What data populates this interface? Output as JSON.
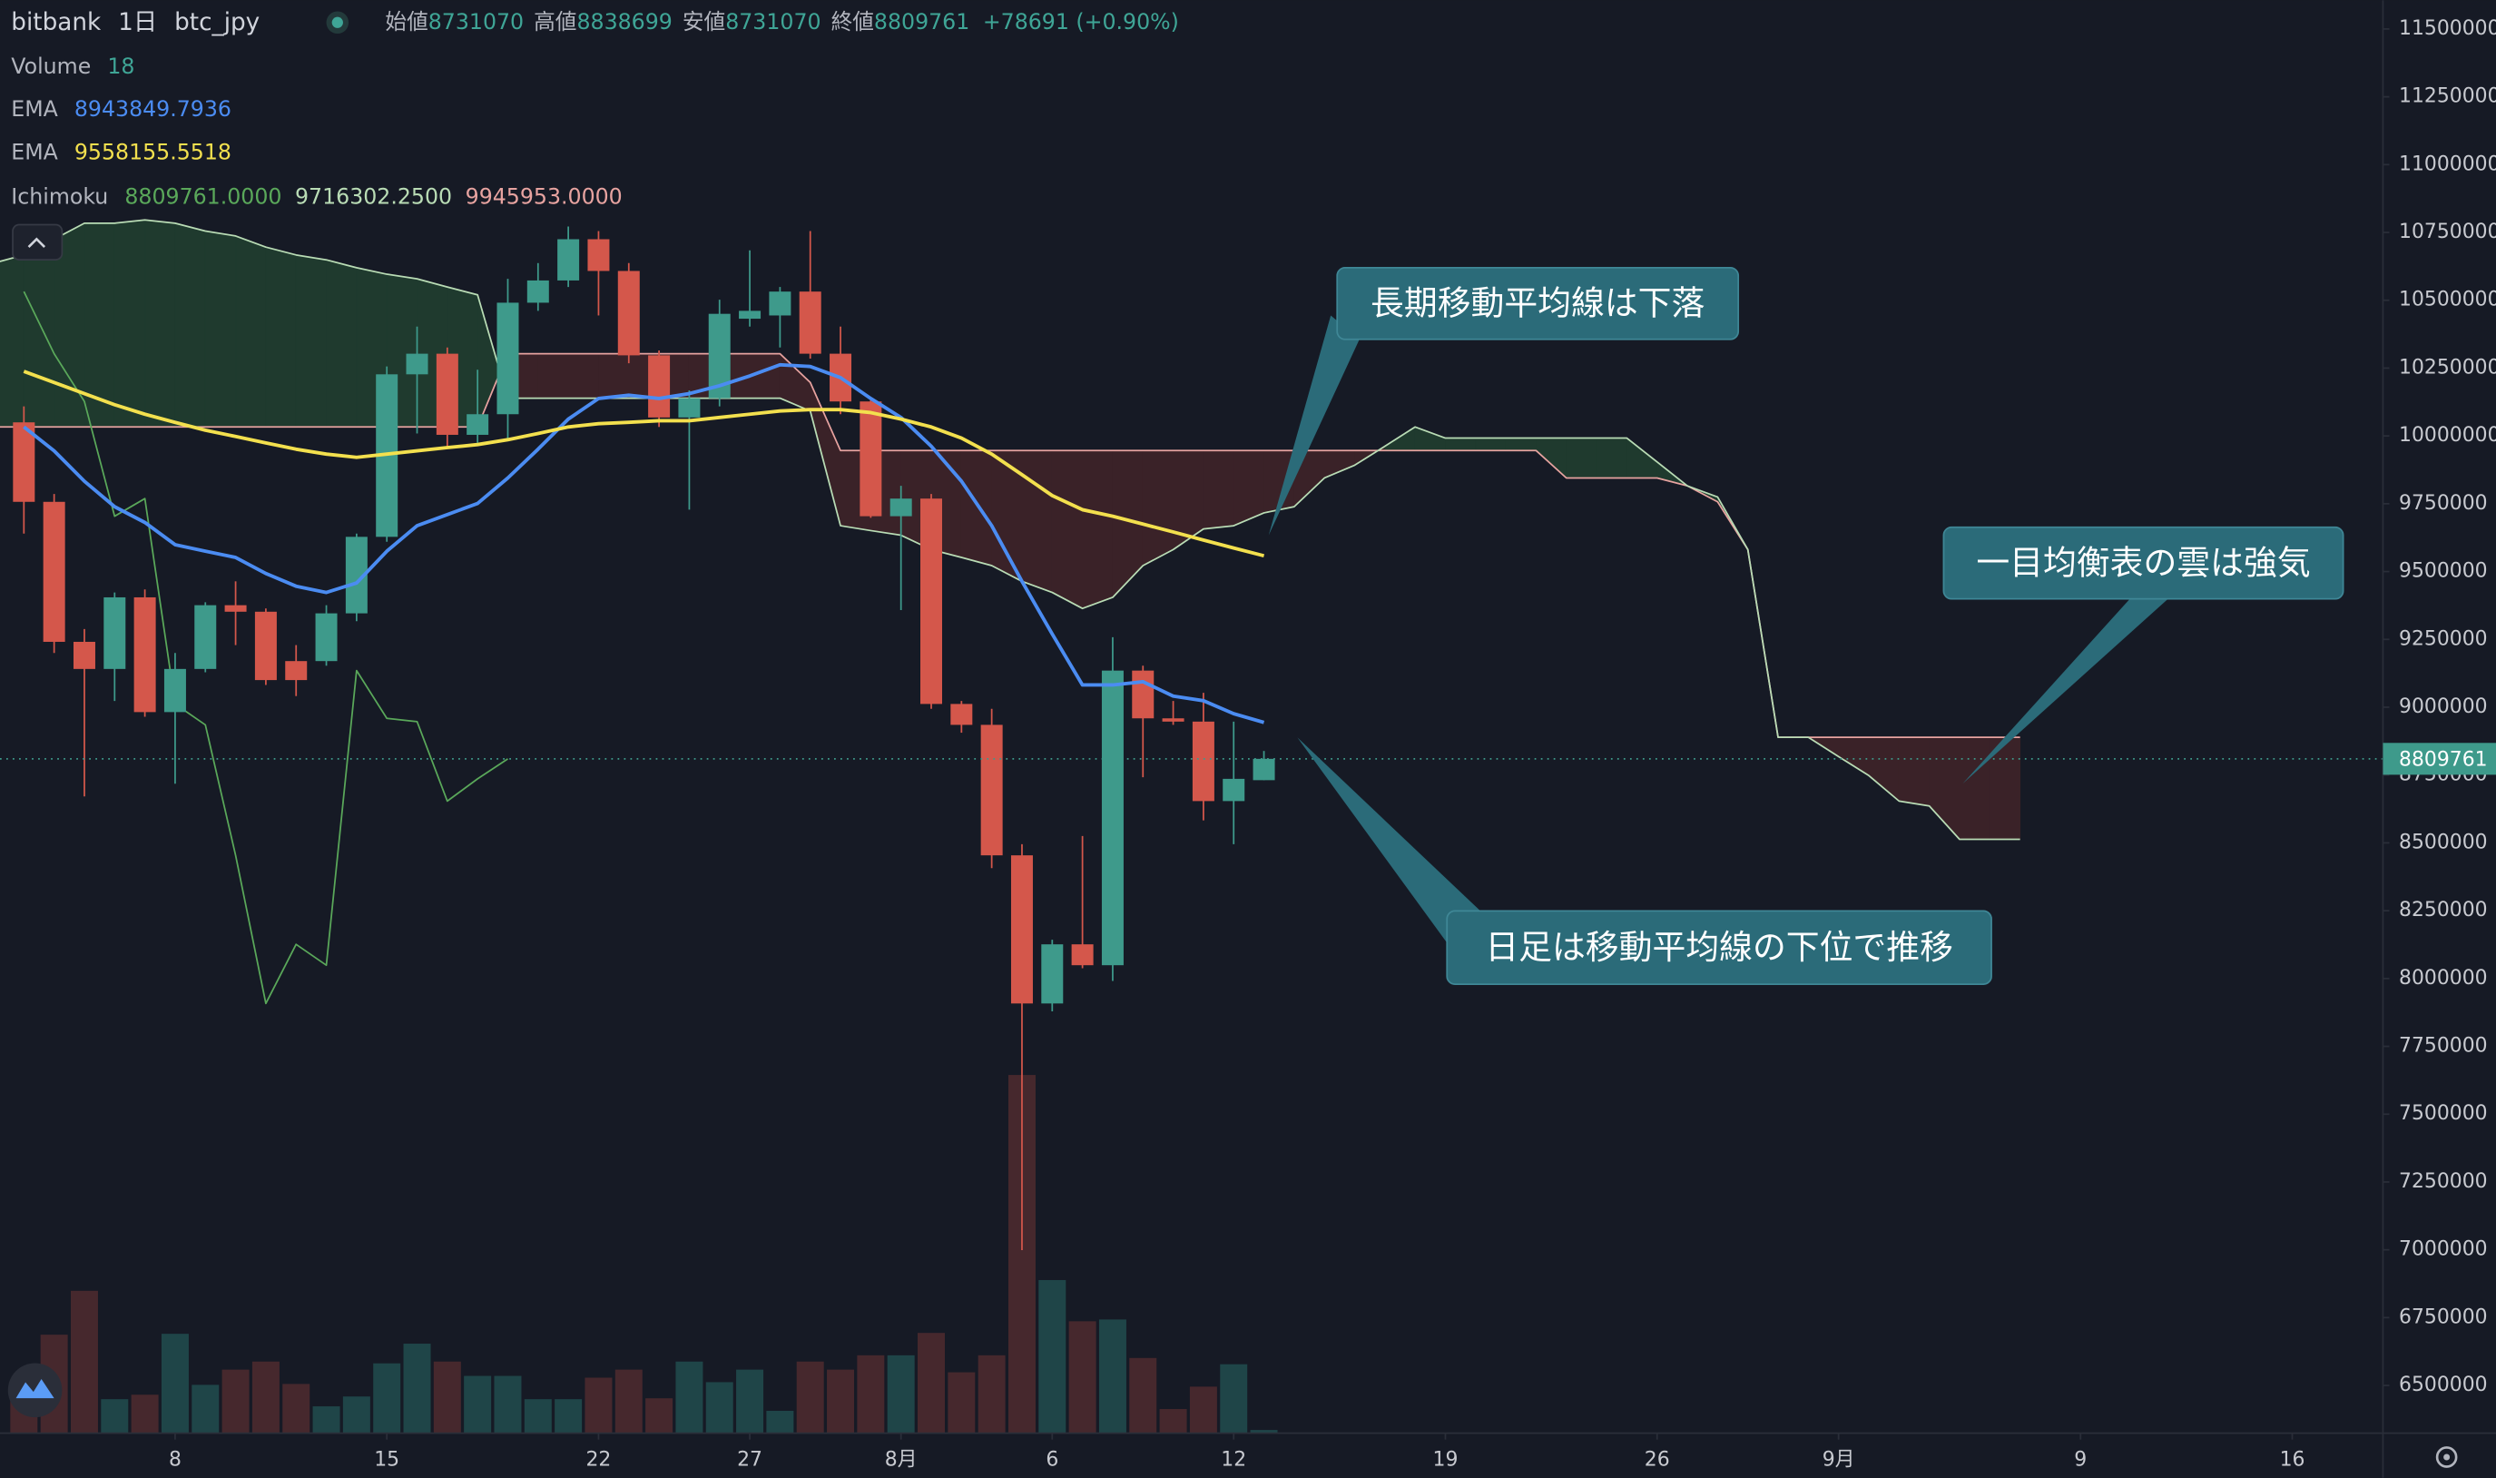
{
  "header": {
    "exchange": "bitbank",
    "interval": "1日",
    "symbol": "btc_jpy",
    "open_label": "始値",
    "high_label": "高値",
    "low_label": "安値",
    "close_label": "終値",
    "change": "+78691 (+0.90%)"
  },
  "chart_data": {
    "type": "candlestick",
    "x": [
      2,
      3,
      4,
      5,
      6,
      7,
      8,
      9,
      10,
      11,
      12,
      13,
      14,
      15,
      16,
      17,
      18,
      19,
      20,
      21,
      22,
      23,
      24,
      25,
      26,
      27,
      28,
      29,
      30,
      31,
      32,
      33,
      34,
      35,
      36,
      37,
      38,
      39,
      40,
      41,
      42,
      43
    ],
    "open": [
      10050000,
      9757000,
      9241000,
      9141000,
      9405000,
      8982000,
      9141000,
      9376000,
      9352000,
      9170000,
      9170000,
      9346000,
      9628000,
      10227000,
      10303000,
      10004000,
      10080000,
      10491000,
      10573000,
      10725000,
      10608000,
      10297000,
      10068000,
      10139000,
      10432000,
      10444000,
      10532000,
      10303000,
      10127000,
      9704000,
      9769000,
      9012000,
      8935000,
      8454000,
      7908000,
      8126000,
      8049000,
      9135000,
      8959000,
      8947000,
      8654000,
      8731070
    ],
    "high": [
      10109000,
      9786000,
      9288000,
      9423000,
      9434000,
      9200000,
      9387000,
      9464000,
      9364000,
      9229000,
      9376000,
      9640000,
      10256000,
      10403000,
      10326000,
      10244000,
      10579000,
      10637000,
      10772000,
      10755000,
      10637000,
      10315000,
      10168000,
      10502000,
      10684000,
      10549000,
      10755000,
      10403000,
      10139000,
      9816000,
      9786000,
      9023000,
      8994000,
      8495000,
      8143000,
      8525000,
      9258000,
      9153000,
      9023000,
      9053000,
      8947000,
      8838699
    ],
    "low": [
      9640000,
      9200000,
      8671000,
      9023000,
      8965000,
      8718000,
      9129000,
      9229000,
      9082000,
      9041000,
      9153000,
      9317000,
      9610000,
      10009000,
      9962000,
      9974000,
      9992000,
      10461000,
      10549000,
      10444000,
      10268000,
      10033000,
      9728000,
      10109000,
      10403000,
      10326000,
      10285000,
      10080000,
      9698000,
      9358000,
      8994000,
      8906000,
      8407000,
      6999000,
      7879000,
      8038000,
      7991000,
      8742000,
      8935000,
      8583000,
      8495000,
      8731070
    ],
    "close": [
      9757000,
      9241000,
      9141000,
      9405000,
      8982000,
      9141000,
      9376000,
      9352000,
      9100000,
      9100000,
      9346000,
      9628000,
      10227000,
      10303000,
      10004000,
      10080000,
      10491000,
      10573000,
      10725000,
      10608000,
      10297000,
      10068000,
      10139000,
      10450000,
      10461000,
      10532000,
      10303000,
      10127000,
      9704000,
      9769000,
      9012000,
      8935000,
      8454000,
      7908000,
      8126000,
      8049000,
      9135000,
      8959000,
      8947000,
      8654000,
      8736000,
      8809761
    ],
    "up_color": "#3e9a8b",
    "down_color": "#d4574b",
    "volume": {
      "name": "Volume",
      "values": [
        180,
        550,
        795,
        190,
        215,
        555,
        270,
        355,
        400,
        275,
        150,
        205,
        390,
        500,
        400,
        320,
        320,
        190,
        190,
        310,
        355,
        195,
        400,
        285,
        355,
        125,
        400,
        355,
        435,
        435,
        560,
        340,
        435,
        2000,
        855,
        625,
        635,
        420,
        135,
        260,
        385,
        18
      ],
      "up_color": "#1f4548",
      "down_color": "#46282d",
      "legend_color": "#3fa596"
    },
    "volume_ylim": [
      0,
      8000
    ],
    "series": [
      {
        "name": "EMA",
        "color": "#4b8cf2",
        "values": [
          10033000,
          9945000,
          9833000,
          9739000,
          9681000,
          9599000,
          9575000,
          9552000,
          9493000,
          9446000,
          9423000,
          9458000,
          9575000,
          9669000,
          9710000,
          9751000,
          9845000,
          9951000,
          10062000,
          10138000,
          10150000,
          10138000,
          10156000,
          10185000,
          10221000,
          10262000,
          10256000,
          10215000,
          10138000,
          10068000,
          9962000,
          9833000,
          9669000,
          9464000,
          9270000,
          9082000,
          9082000,
          9094000,
          9041000,
          9024000,
          8976000,
          8943849.7936
        ]
      },
      {
        "name": "EMA",
        "color": "#f3e04e",
        "values": [
          10238000,
          10197000,
          10156000,
          10115000,
          10080000,
          10050000,
          10021000,
          9998000,
          9974000,
          9951000,
          9933000,
          9921000,
          9933000,
          9945000,
          9957000,
          9968000,
          9986000,
          10009000,
          10033000,
          10045000,
          10050000,
          10056000,
          10056000,
          10068000,
          10080000,
          10092000,
          10097000,
          10097000,
          10086000,
          10062000,
          10033000,
          9992000,
          9933000,
          9857000,
          9780000,
          9728000,
          9704000,
          9675000,
          9646000,
          9616000,
          9587000,
          9558155.5518
        ]
      }
    ],
    "ichimoku": {
      "name": "Ichimoku",
      "legend_values": [
        "8809761.0000",
        "9716302.2500",
        "9945953.0000"
      ],
      "x": [
        1,
        2,
        3,
        4,
        5,
        6,
        7,
        8,
        9,
        10,
        11,
        12,
        13,
        14,
        15,
        16,
        17,
        18,
        19,
        20,
        21,
        22,
        23,
        24,
        25,
        26,
        27,
        28,
        29,
        30,
        31,
        32,
        33,
        34,
        35,
        36,
        37,
        38,
        39,
        40,
        41,
        42,
        43,
        44,
        45,
        46,
        47,
        48,
        49,
        50,
        51,
        52,
        53,
        54,
        55,
        56,
        57,
        58,
        59,
        60,
        61,
        62,
        63,
        64,
        65,
        66,
        67,
        68
      ],
      "span_a": {
        "color": "#b9dcb5",
        "values": [
          10637000,
          10667000,
          10725000,
          10784000,
          10784000,
          10796000,
          10784000,
          10755000,
          10737000,
          10696000,
          10667000,
          10649000,
          10620000,
          10596000,
          10579000,
          10549000,
          10520000,
          10139000,
          10139000,
          10139000,
          10139000,
          10139000,
          10139000,
          10139000,
          10139000,
          10139000,
          10139000,
          10092000,
          9669000,
          9651000,
          9634000,
          9581000,
          9552000,
          9522000,
          9464000,
          9423000,
          9364000,
          9405000,
          9522000,
          9581000,
          9657000,
          9669000,
          9716302.25,
          9739000,
          9845000,
          9892000,
          9962000,
          10033000,
          9992000,
          9992000,
          9992000,
          9992000,
          9992000,
          9992000,
          9992000,
          9904000,
          9816000,
          9775000,
          9581000,
          8889000,
          8889000,
          8818000,
          8748000,
          8654000,
          8636000,
          8513000,
          8513000,
          8513000
        ]
      },
      "span_b": {
        "color": "#e7a3a0",
        "values": [
          10033000,
          10033000,
          10033000,
          10033000,
          10033000,
          10033000,
          10033000,
          10033000,
          10033000,
          10033000,
          10033000,
          10033000,
          10033000,
          10033000,
          10033000,
          10033000,
          10033000,
          10303000,
          10303000,
          10303000,
          10303000,
          10303000,
          10303000,
          10303000,
          10303000,
          10303000,
          10303000,
          10197000,
          9945953,
          9945953,
          9945953,
          9945953,
          9945953,
          9945953,
          9945953,
          9945953,
          9945953,
          9945953,
          9945953,
          9945953,
          9945953,
          9945953,
          9945953,
          9945953,
          9945953,
          9945953,
          9945953,
          9945953,
          9945953,
          9945953,
          9945953,
          9945953,
          9845000,
          9845000,
          9845000,
          9845000,
          9816000,
          9757000,
          9581000,
          8889000,
          8889000,
          8889000,
          8889000,
          8889000,
          8889000,
          8889000,
          8889000,
          8889000
        ]
      },
      "lagging": {
        "color": "#5aa85a",
        "x": [
          2,
          3,
          4,
          5,
          6,
          7,
          8,
          9,
          10,
          11,
          12,
          13,
          14,
          15,
          16,
          17,
          18
        ],
        "values": [
          10532000,
          10303000,
          10127000,
          9704000,
          9769000,
          9012000,
          8935000,
          8454000,
          7908000,
          8126000,
          8049000,
          9135000,
          8959000,
          8947000,
          8654000,
          8736000,
          8809761
        ]
      },
      "cloud_up_color": "#1f3a2e",
      "cloud_down_color": "#3a2228"
    },
    "xlim": [
      1.21,
      80
    ],
    "xticks": [
      {
        "value": 7,
        "label": "8"
      },
      {
        "value": 14,
        "label": "15"
      },
      {
        "value": 21,
        "label": "22"
      },
      {
        "value": 26,
        "label": "27"
      },
      {
        "value": 31,
        "label": "8月"
      },
      {
        "value": 36,
        "label": "6"
      },
      {
        "value": 42,
        "label": "12"
      },
      {
        "value": 49,
        "label": "19"
      },
      {
        "value": 56,
        "label": "26"
      },
      {
        "value": 62,
        "label": "9月"
      },
      {
        "value": 70,
        "label": "9"
      },
      {
        "value": 77,
        "label": "16"
      }
    ],
    "ylim": [
      6324000,
      11606000
    ],
    "yticks": [
      6500000,
      6750000,
      7000000,
      7250000,
      7500000,
      7750000,
      8000000,
      8250000,
      8500000,
      8750000,
      9000000,
      9250000,
      9500000,
      9750000,
      10000000,
      10250000,
      10500000,
      10750000,
      11000000,
      11250000,
      11500000
    ],
    "grid": false,
    "annotations": [
      {
        "text": "長期移動平均線は下落"
      },
      {
        "text": "一目均衡表の雲は強気"
      },
      {
        "text": "日足は移動平均線の下位で推移"
      }
    ],
    "annotation_color": "#2b6b79"
  }
}
